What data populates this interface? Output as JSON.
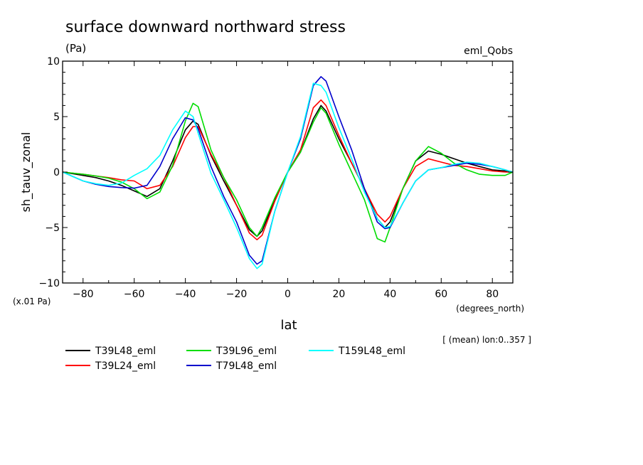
{
  "chart_data": {
    "type": "line",
    "title": "surface downward northward stress",
    "units": "(Pa)",
    "experiment": "eml_Qobs",
    "xlabel": "lat",
    "x_units": "(degrees_north)",
    "ylabel": "sh_tauv_zonal",
    "y_scale_note": "(x.01 Pa)",
    "averaging_note": "[ (mean) lon:0..357 ]",
    "xlim": [
      -88,
      88
    ],
    "ylim": [
      -10,
      10
    ],
    "x_ticks": [
      -80,
      -60,
      -40,
      -20,
      0,
      20,
      40,
      60,
      80
    ],
    "x_tick_labels": [
      "−80",
      "−60",
      "−40",
      "−20",
      "0",
      "20",
      "40",
      "60",
      "80"
    ],
    "y_ticks": [
      -10,
      -5,
      0,
      5,
      10
    ],
    "y_tick_labels": [
      "−10",
      "−5",
      "0",
      "5",
      "10"
    ],
    "x": [
      -88,
      -80,
      -75,
      -70,
      -65,
      -60,
      -55,
      -50,
      -45,
      -40,
      -37,
      -35,
      -30,
      -25,
      -20,
      -15,
      -12,
      -10,
      -5,
      0,
      5,
      10,
      13,
      15,
      20,
      25,
      30,
      35,
      38,
      40,
      45,
      50,
      55,
      60,
      65,
      70,
      75,
      80,
      85,
      88
    ],
    "series": [
      {
        "name": "T39L48_eml",
        "color": "#000000",
        "values": [
          0,
          -0.3,
          -0.5,
          -0.8,
          -1.2,
          -1.7,
          -2.2,
          -1.5,
          1.0,
          3.8,
          4.6,
          4.3,
          1.5,
          -0.8,
          -3.0,
          -5.2,
          -5.8,
          -5.3,
          -2.5,
          0,
          1.8,
          4.8,
          6.0,
          5.5,
          3.0,
          0.8,
          -1.5,
          -4.2,
          -5.0,
          -4.5,
          -1.5,
          1.0,
          1.9,
          1.6,
          1.2,
          0.8,
          0.5,
          0.2,
          0.1,
          0
        ]
      },
      {
        "name": "T39L24_eml",
        "color": "#ff0000",
        "values": [
          0,
          -0.2,
          -0.35,
          -0.5,
          -0.7,
          -0.8,
          -1.5,
          -1.2,
          0.5,
          3.1,
          4.1,
          4.1,
          1.6,
          -0.5,
          -3.0,
          -5.5,
          -6.1,
          -5.7,
          -2.6,
          0,
          2.0,
          5.8,
          6.5,
          6.0,
          3.3,
          0.8,
          -1.5,
          -3.8,
          -4.5,
          -4.0,
          -1.5,
          0.5,
          1.2,
          0.9,
          0.6,
          0.5,
          0.3,
          0.1,
          0.0,
          0
        ]
      },
      {
        "name": "T39L96_eml",
        "color": "#00dd00",
        "values": [
          0,
          -0.2,
          -0.35,
          -0.55,
          -0.9,
          -1.5,
          -2.4,
          -1.8,
          0.6,
          4.6,
          6.2,
          5.9,
          2.0,
          -0.5,
          -2.5,
          -5.0,
          -5.8,
          -5.0,
          -2.3,
          0,
          1.8,
          4.5,
          5.8,
          5.3,
          2.5,
          0.0,
          -2.5,
          -6.0,
          -6.3,
          -5.0,
          -1.5,
          1.0,
          2.3,
          1.7,
          0.8,
          0.2,
          -0.2,
          -0.3,
          -0.3,
          0
        ]
      },
      {
        "name": "T79L48_eml",
        "color": "#0000cc",
        "values": [
          0,
          -0.8,
          -1.1,
          -1.3,
          -1.4,
          -1.45,
          -1.2,
          0.5,
          3.0,
          4.9,
          4.7,
          3.9,
          0.5,
          -2.2,
          -4.5,
          -7.5,
          -8.3,
          -8.0,
          -3.5,
          0,
          3.0,
          7.8,
          8.6,
          8.2,
          5.0,
          2.0,
          -1.5,
          -4.5,
          -5.1,
          -5.0,
          -2.8,
          -0.8,
          0.2,
          0.4,
          0.6,
          0.8,
          0.7,
          0.5,
          0.2,
          0
        ]
      },
      {
        "name": "T159L48_eml",
        "color": "#00ffff",
        "values": [
          0,
          -0.8,
          -1.05,
          -1.2,
          -1.0,
          -0.3,
          0.3,
          1.5,
          3.8,
          5.5,
          5.0,
          3.5,
          -0.1,
          -2.5,
          -5.0,
          -7.8,
          -8.7,
          -8.3,
          -3.5,
          0,
          3.2,
          8.0,
          7.8,
          7.2,
          4.0,
          1.2,
          -1.8,
          -4.2,
          -5.0,
          -4.9,
          -2.8,
          -0.8,
          0.2,
          0.4,
          0.7,
          0.9,
          0.8,
          0.5,
          0.2,
          0
        ]
      }
    ]
  }
}
